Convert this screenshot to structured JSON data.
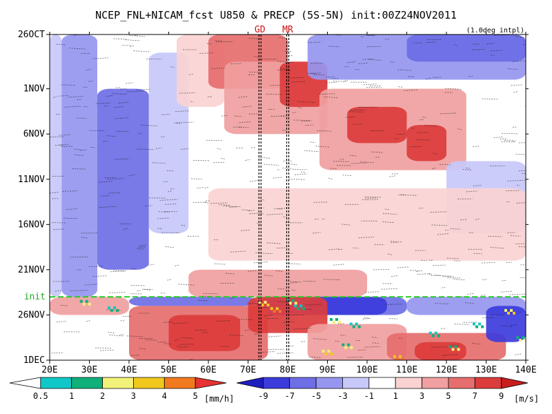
{
  "chart_data": {
    "type": "heatmap",
    "title": "NCEP_FNL+NICAM_fcst U850 & PRECP (5S-5N) init:00Z24NOV2011",
    "note": "(1.0deg intpl)",
    "x_ticks": [
      "20E",
      "30E",
      "40E",
      "50E",
      "60E",
      "70E",
      "80E",
      "90E",
      "100E",
      "110E",
      "120E",
      "130E",
      "140E"
    ],
    "x_values": [
      20,
      30,
      40,
      50,
      60,
      70,
      80,
      90,
      100,
      110,
      120,
      130,
      140
    ],
    "xlim": [
      20,
      140
    ],
    "y_ticks": [
      "26OCT",
      "1NOV",
      "6NOV",
      "11NOV",
      "16NOV",
      "21NOV",
      "26NOV",
      "1DEC"
    ],
    "y_days": [
      0,
      6,
      11,
      16,
      21,
      26,
      31,
      36
    ],
    "ylim_days": [
      0,
      36
    ],
    "init_label": "init",
    "init_day": 29,
    "markers": [
      {
        "label": "GD",
        "lon": 73
      },
      {
        "label": "MR",
        "lon": 80
      }
    ],
    "precip_colorbar": {
      "unit": "[mm/h]",
      "levels": [
        "0.5",
        "1",
        "2",
        "3",
        "4",
        "5"
      ],
      "colors": [
        "#ffffff",
        "#10c8c8",
        "#10b07a",
        "#f2f27a",
        "#f2c81e",
        "#f27a1e",
        "#e63232"
      ]
    },
    "u850_colorbar": {
      "unit": "[m/s]",
      "levels": [
        "-9",
        "-7",
        "-5",
        "-3",
        "-1",
        "1",
        "3",
        "5",
        "7",
        "9"
      ],
      "colors": [
        "#1e1ebe",
        "#3c3cdc",
        "#6e6ee6",
        "#9696f0",
        "#c8c8fa",
        "#ffffff",
        "#fad2d2",
        "#f0a0a0",
        "#e66e6e",
        "#dc3c3c",
        "#c81e1e"
      ]
    },
    "u850_bands": [
      {
        "lon0": 20,
        "lon1": 23,
        "day0": 0,
        "day1": 29,
        "level": -1
      },
      {
        "lon0": 23,
        "lon1": 32,
        "day0": 0,
        "day1": 29,
        "level": -3
      },
      {
        "lon0": 32,
        "lon1": 45,
        "day0": 6,
        "day1": 26,
        "level": -5
      },
      {
        "lon0": 45,
        "lon1": 55,
        "day0": 2,
        "day1": 22,
        "level": -1
      },
      {
        "lon0": 52,
        "lon1": 64,
        "day0": 0,
        "day1": 8,
        "level": 1
      },
      {
        "lon0": 60,
        "lon1": 80,
        "day0": 0,
        "day1": 6,
        "level": 5
      },
      {
        "lon0": 64,
        "lon1": 90,
        "day0": 3,
        "day1": 11,
        "level": 3
      },
      {
        "lon0": 78,
        "lon1": 90,
        "day0": 3,
        "day1": 8,
        "level": 7
      },
      {
        "lon0": 88,
        "lon1": 125,
        "day0": 6,
        "day1": 15,
        "level": 3
      },
      {
        "lon0": 95,
        "lon1": 110,
        "day0": 8,
        "day1": 12,
        "level": 7
      },
      {
        "lon0": 110,
        "lon1": 120,
        "day0": 10,
        "day1": 14,
        "level": 7
      },
      {
        "lon0": 85,
        "lon1": 140,
        "day0": 0,
        "day1": 5,
        "level": -3
      },
      {
        "lon0": 110,
        "lon1": 140,
        "day0": 0,
        "day1": 3,
        "level": -5
      },
      {
        "lon0": 120,
        "lon1": 140,
        "day0": 14,
        "day1": 22,
        "level": -1
      },
      {
        "lon0": 60,
        "lon1": 140,
        "day0": 17,
        "day1": 25,
        "level": 1
      },
      {
        "lon0": 55,
        "lon1": 100,
        "day0": 26,
        "day1": 29,
        "level": 3
      },
      {
        "lon0": 20,
        "lon1": 40,
        "day0": 29,
        "day1": 31,
        "level": 3
      },
      {
        "lon0": 40,
        "lon1": 72,
        "day0": 29,
        "day1": 30,
        "level": -5
      },
      {
        "lon0": 72,
        "lon1": 110,
        "day0": 29,
        "day1": 31,
        "level": -5
      },
      {
        "lon0": 85,
        "lon1": 105,
        "day0": 29,
        "day1": 31,
        "level": -7
      },
      {
        "lon0": 110,
        "lon1": 140,
        "day0": 29,
        "day1": 31,
        "level": -3
      },
      {
        "lon0": 40,
        "lon1": 75,
        "day0": 30,
        "day1": 36,
        "level": 5
      },
      {
        "lon0": 50,
        "lon1": 68,
        "day0": 31,
        "day1": 35,
        "level": 7
      },
      {
        "lon0": 70,
        "lon1": 90,
        "day0": 29,
        "day1": 33,
        "level": 7
      },
      {
        "lon0": 85,
        "lon1": 110,
        "day0": 32,
        "day1": 36,
        "level": 3
      },
      {
        "lon0": 105,
        "lon1": 135,
        "day0": 33,
        "day1": 36,
        "level": 5
      },
      {
        "lon0": 112,
        "lon1": 125,
        "day0": 34,
        "day1": 36,
        "level": 7
      },
      {
        "lon0": 130,
        "lon1": 140,
        "day0": 30,
        "day1": 34,
        "level": -7
      }
    ],
    "precip_patches": [
      {
        "lon": 29,
        "day": 29.5,
        "level": 2
      },
      {
        "lon": 36,
        "day": 30.2,
        "level": 1
      },
      {
        "lon": 74,
        "day": 29.6,
        "level": 3
      },
      {
        "lon": 77,
        "day": 30.3,
        "level": 4
      },
      {
        "lon": 81,
        "day": 29.4,
        "level": 2
      },
      {
        "lon": 83,
        "day": 30.0,
        "level": 1
      },
      {
        "lon": 92,
        "day": 31.5,
        "level": 2
      },
      {
        "lon": 97,
        "day": 32.0,
        "level": 1
      },
      {
        "lon": 90,
        "day": 35.0,
        "level": 3
      },
      {
        "lon": 95,
        "day": 34.3,
        "level": 2
      },
      {
        "lon": 108,
        "day": 35.6,
        "level": 4
      },
      {
        "lon": 117,
        "day": 33.0,
        "level": 1
      },
      {
        "lon": 122,
        "day": 34.5,
        "level": 2
      },
      {
        "lon": 128,
        "day": 32.0,
        "level": 1
      },
      {
        "lon": 136,
        "day": 30.5,
        "level": 3
      },
      {
        "lon": 139,
        "day": 33.5,
        "level": 2
      }
    ]
  }
}
